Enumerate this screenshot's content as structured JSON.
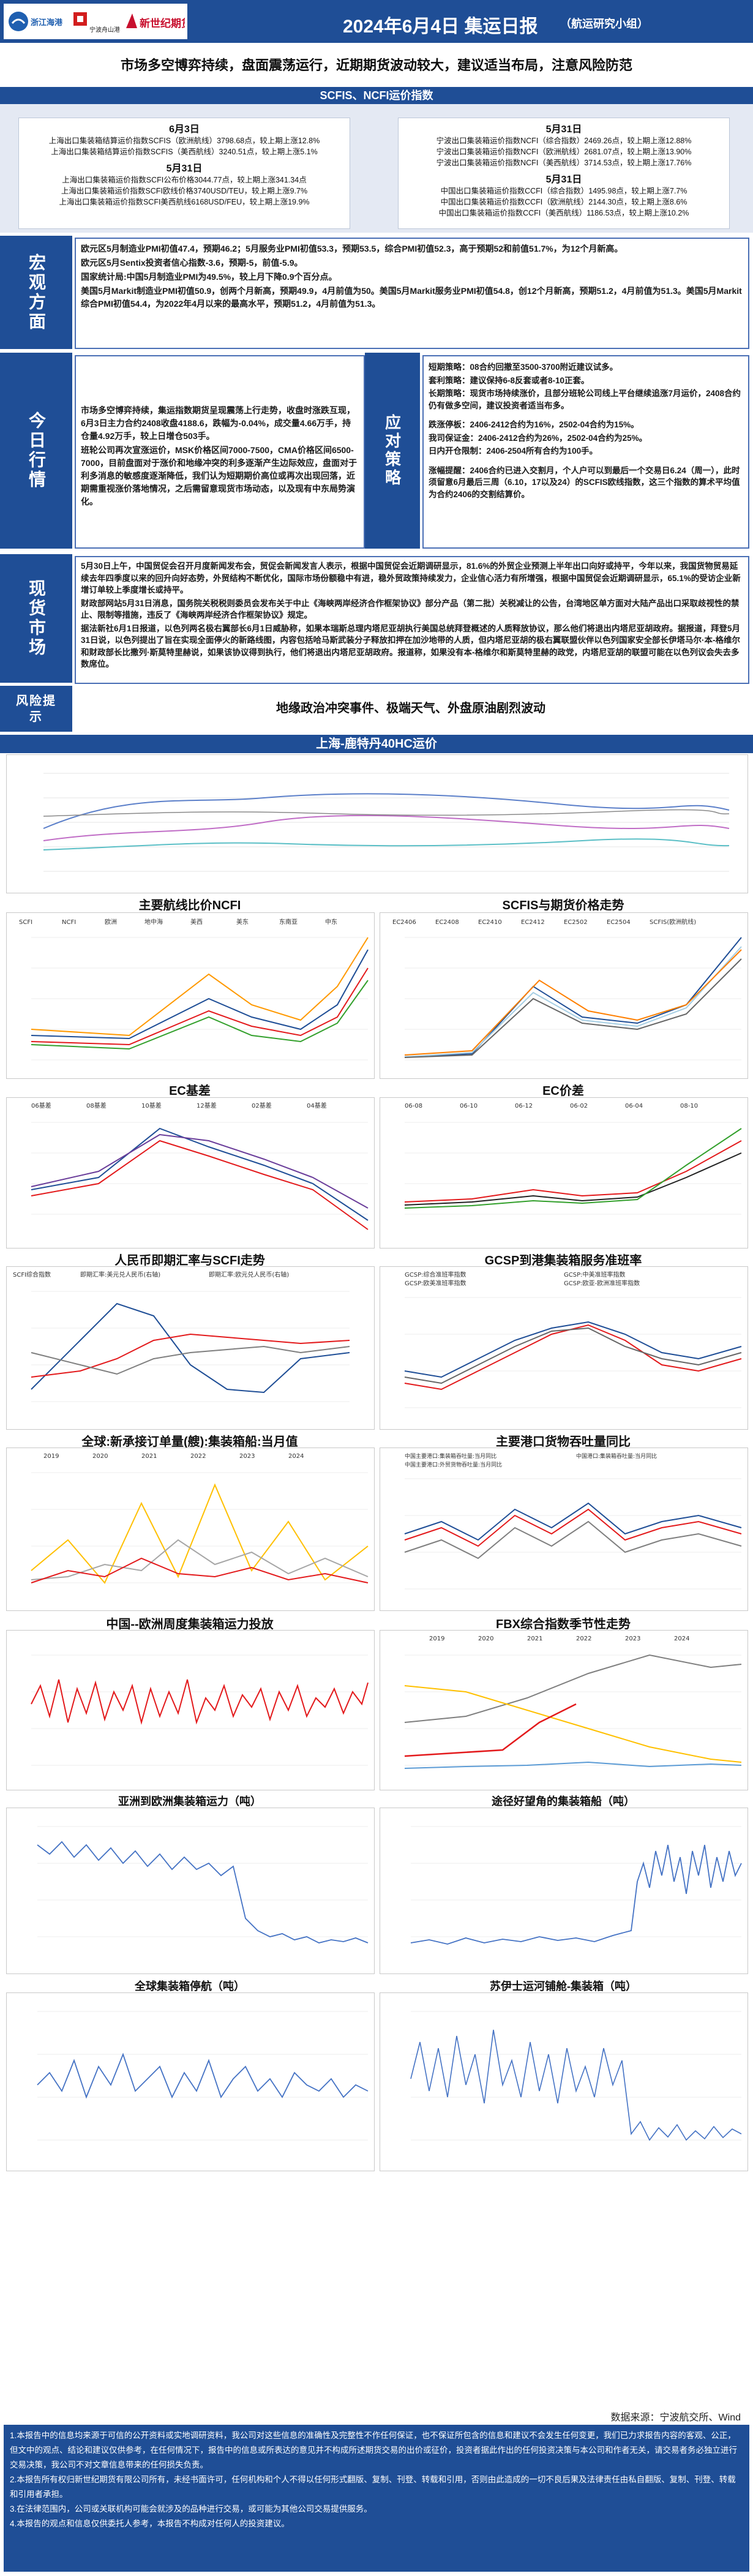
{
  "header": {
    "logo1": "浙江海港",
    "logo2": "宁波舟山港",
    "logo3": "新世纪期货",
    "title": "2024年6月4日 集运日报",
    "subtitle": "（航运研究小组）"
  },
  "headline": "市场多空博弈持续，盘面震荡运行，近期期货波动较大，建议适当布局，注意风险防范",
  "index_section": {
    "title": "SCFIS、NCFI运价指数",
    "left": {
      "date1": "6月3日",
      "lines1": [
        "上海出口集装箱结算运价指数SCFIS（欧洲航线）3798.68点，较上期上涨12.8%",
        "上海出口集装箱结算运价指数SCFIS（美西航线）3240.51点，较上期上涨5.1%"
      ],
      "date2": "5月31日",
      "lines2": [
        "上海出口集装箱运价指数SCFI公布价格3044.77点，较上期上涨341.34点",
        "上海出口集装箱运价指数SCFI欧线价格3740USD/TEU，较上期上涨9.7%",
        "上海出口集装箱运价指数SCFI美西航线6168USD/FEU，较上期上涨19.9%"
      ]
    },
    "right": {
      "date1": "5月31日",
      "lines1": [
        "宁波出口集装箱运价指数NCFI（综合指数）2469.26点，较上期上涨12.88%",
        "宁波出口集装箱运价指数NCFI（欧洲航线）2681.07点，较上期上涨13.90%",
        "宁波出口集装箱运价指数NCFI（美西航线）3714.53点，较上期上涨17.76%"
      ],
      "date2": "5月31日",
      "lines2": [
        "中国出口集装箱运价指数CCFI（综合指数）1495.98点，较上期上涨7.7%",
        "中国出口集装箱运价指数CCFI（欧洲航线）2144.30点，较上期上涨8.6%",
        "中国出口集装箱运价指数CCFI（美西航线）1186.53点，较上期上涨10.2%"
      ]
    }
  },
  "macro": {
    "label": "宏观方面",
    "paragraphs": [
      "欧元区5月制造业PMI初值47.4，预期46.2；5月服务业PMI初值53.3，预期53.5，综合PMI初值52.3，高于预期52和前值51.7%，为12个月新高。",
      "欧元区5月Sentix投资者信心指数-3.6，预期-5，前值-5.9。",
      "国家统计局:中国5月制造业PMI为49.5%，较上月下降0.9个百分点。",
      "美国5月Markit制造业PMI初值50.9，创两个月新高，预期49.9，4月前值为50。美国5月Markit服务业PMI初值54.8，创12个月新高，预期51.2，4月前值为51.3。美国5月Markit综合PMI初值54.4，为2022年4月以来的最高水平，预期51.2，4月前值为51.3。"
    ]
  },
  "today": {
    "label": "今日行情",
    "paragraphs": [
      "市场多空博弈持续，集运指数期货呈现震荡上行走势，收盘时涨跌互现，6月3日主力合约2408收盘4188.6，跌幅为-0.04%，成交量4.66万手，持仓量4.92万手，较上日增仓503手。",
      "班轮公司再次宣涨运价，MSK价格区间7000-7500，CMA价格区间6500-7000，目前盘面对于涨价和地缘冲突的利多逐渐产生边际效应，盘面对于利多消息的敏感度逐渐降低，我们认为短期期价高位或再次出现回落，近期需重视涨价落地情况，之后需留意现货市场动态，以及现有中东局势演化。"
    ]
  },
  "strategy": {
    "label": "应对策略",
    "paragraphs": [
      "短期策略：08合约回撤至3500-3700附近建议试多。",
      "套利策略：建议保持6-8反套或者8-10正套。",
      "长期策略：现货市场持续涨价，且部分班轮公司线上平台继续追涨7月运价，2408合约仍有做多空间，建议投资者适当布多。",
      "",
      "跌涨停板：2406-2412合约为16%，2502-04合约为15%。",
      "我司保证金：2406-2412合约为26%，2502-04合约为25%。",
      "日内开仓限制：2406-2504所有合约为100手。",
      "",
      "涨幅提醒：2406合约已进入交割月，个人户可以到最后一个交易日6.24（周一），此时须留意6月最后三周（6.10，17以及24）的SCFIS欧线指数，这三个指数的算术平均值为合约2406的交割结算价。"
    ]
  },
  "spot": {
    "label": "现货市场",
    "paragraphs": [
      "5月30日上午，中国贸促会召开月度新闻发布会，贸促会新闻发言人表示，根据中国贸促会近期调研显示，81.6%的外贸企业预测上半年出口向好或持平，今年以来，我国货物贸易延续去年四季度以来的回升向好态势，外贸结构不断优化，国际市场份额稳中有进，稳外贸政策持续发力，企业信心活力有所增强，根据中国贸促会近期调研显示，65.1%的受访企业新增订单较上季度增长或持平。",
      "财政部网站5月31日消息，国务院关税税则委员会发布关于中止《海峡两岸经济合作框架协议》部分产品（第二批）关税减让的公告，台湾地区单方面对大陆产品出口采取歧视性的禁止、限制等措施，违反了《海峡两岸经济合作框架协议》规定。",
      "据法新社6月1日报道，以色列两名极右翼部长6月1日威胁称，如果本瑞斯总理内塔尼亚胡执行美国总统拜登概述的人质释放协议，那么他们将退出内塔尼亚胡政府。据报道，拜登5月31日说，以色列提出了旨在实现全面停火的新路线图，内容包括哈马斯武装分子释放扣押在加沙地带的人质，但内塔尼亚胡的极右翼联盟伙伴以色列国家安全部长伊塔马尔·本-格维尔和财政部长比撒列·斯莫特里赫说，如果该协议得到执行，他们将退出内塔尼亚胡政府。报道称，如果没有本-格维尔和斯莫特里赫的政党，内塔尼亚胡的联盟可能在以色列议会失去多数席位。"
    ]
  },
  "risk": {
    "label": "风险提示",
    "text": "地缘政治冲突事件、极端天气、外盘原油剧烈波动"
  },
  "chart_section": {
    "title": "上海-鹿特丹40HC运价"
  },
  "charts": {
    "ncfi_title": "主要航线比价NCFI",
    "ncfi_legend": [
      "SCFI",
      "NCFI",
      "欧洲",
      "地中海",
      "美西",
      "美东",
      "东南亚",
      "中东"
    ],
    "scfis_title": "SCFIS与期货价格走势",
    "scfis_legend": [
      "EC2406",
      "EC2408",
      "EC2410",
      "EC2412",
      "EC2502",
      "EC2504",
      "SCFIS(欧洲航线)"
    ],
    "ec_basis_title": "EC基差",
    "ec_basis_legend": [
      "06基差",
      "08基差",
      "10基差",
      "12基差",
      "02基差",
      "04基差"
    ],
    "ec_spread_title": "EC价差",
    "ec_spread_legend": [
      "06-08",
      "06-10",
      "06-12",
      "06-02",
      "06-04",
      "08-10"
    ],
    "rmb_title": "人民币即期汇率与SCFI走势",
    "rmb_legend": [
      "SCFI综合指数",
      "即期汇率:美元兑人民币(右轴)",
      "即期汇率:欧元兑人民币(右轴)"
    ],
    "gcsp_title": "GCSP到港集装箱服务准班率",
    "gcsp_legend": [
      "GCSP:综合准班率指数",
      "GCSP:中美准班率指数",
      "GCSP:欧美准班率指数",
      "GCSP:欧亚-欧洲准班率指数"
    ],
    "newbuild_title": "全球:新承接订单量(艘):集装箱船:当月值",
    "newbuild_legend": [
      "2019",
      "2020",
      "2021",
      "2022",
      "2023",
      "2024"
    ],
    "port_title": "主要港口货物吞吐量同比",
    "port_legend": [
      "中国主要港口:集装箱吞吐量:当月同比",
      "中国港口:集装箱吞吐量:当月同比",
      "中国主要港口:外贸货物吞吐量:当月同比"
    ],
    "capacity_title": "中国--欧洲周度集装箱运力投放",
    "fbx_title": "FBX综合指数季节性走势",
    "fbx_legend": [
      "2019",
      "2020",
      "2021",
      "2022",
      "2023",
      "2024"
    ],
    "asia_eu_title": "亚洲到欧洲集装箱运力（吨）",
    "cape_title": "途径好望角的集装箱船（吨）",
    "idle_title": "全球集装箱停航（吨）",
    "suez_title": "苏伊士运河铺舱-集装箱（吨）"
  },
  "source": "数据来源：宁波航交所、Wind",
  "disclaimer": [
    "1.本报告中的信息均来源于可信的公开资料或实地调研资料，我公司对这些信息的准确性及完整性不作任何保证，也不保证所包含的信息和建议不会发生任何变更，我们已力求报告内容的客观、公正，但文中的观点、结论和建议仅供参考，在任何情况下，报告中的信息或所表达的意见并不构成所述期货交易的出价或征价，投资者据此作出的任何投资决策与本公司和作者无关，请交易者务必独立进行交易决策，我公司不对文章信息带来的任何损失负责。",
    "2.本报告所有权归新世纪期货有限公司所有，未经书面许可，任何机构和个人不得以任何形式翻版、复制、刊登、转载和引用，否则由此造成的一切不良后果及法律责任由私自翻版、复制、刊登、转载和引用者承担。",
    "3.在法律范围内，公司或关联机构可能会就涉及的品种进行交易，或可能为其他公司交易提供服务。",
    "4.本报告的观点和信息仅供委托人参考，本报告不构成对任何人的投资建议。"
  ]
}
